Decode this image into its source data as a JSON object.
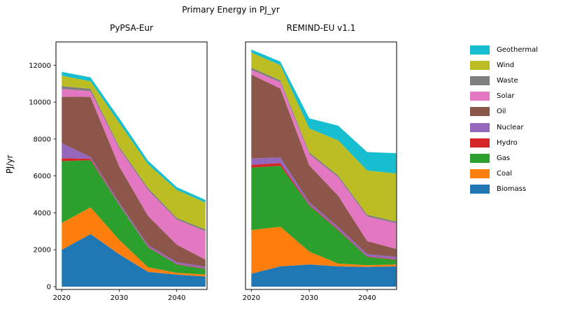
{
  "figure": {
    "title": "Primary Energy in PJ_yr",
    "ylabel": "PJ/yr",
    "background": "#ffffff",
    "axis_color": "#000000"
  },
  "legend": {
    "position": "right-outside",
    "entries_top_to_bottom": [
      "Geothermal",
      "Wind",
      "Waste",
      "Solar",
      "Oil",
      "Nuclear",
      "Hydro",
      "Gas",
      "Coal",
      "Biomass"
    ]
  },
  "series_colors": {
    "Biomass": "#1f77b4",
    "Coal": "#ff7f0e",
    "Gas": "#2ca02c",
    "Hydro": "#d62728",
    "Nuclear": "#9467bd",
    "Oil": "#8c564b",
    "Solar": "#e377c2",
    "Waste": "#7f7f7f",
    "Wind": "#bcbd22",
    "Geothermal": "#17becf"
  },
  "chart_data": [
    {
      "type": "area",
      "stacked": true,
      "title": "PyPSA-Eur",
      "x": [
        2020,
        2025,
        2030,
        2035,
        2040,
        2045
      ],
      "xticks": [
        2020,
        2030,
        2040
      ],
      "yticks": [
        0,
        2000,
        4000,
        6000,
        8000,
        10000,
        12000
      ],
      "ylim": [
        0,
        13250
      ],
      "xlabel": "",
      "ylabel": "PJ/yr",
      "grid": false,
      "series": [
        {
          "name": "Biomass",
          "values": [
            2000,
            2850,
            1750,
            800,
            650,
            550
          ]
        },
        {
          "name": "Coal",
          "values": [
            1450,
            1450,
            780,
            250,
            100,
            100
          ]
        },
        {
          "name": "Gas",
          "values": [
            3350,
            2550,
            1890,
            1075,
            450,
            300
          ]
        },
        {
          "name": "Hydro",
          "values": [
            165,
            80,
            30,
            30,
            25,
            30
          ]
        },
        {
          "name": "Nuclear",
          "values": [
            810,
            100,
            100,
            100,
            100,
            100
          ]
        },
        {
          "name": "Oil",
          "values": [
            2525,
            3250,
            1960,
            1580,
            950,
            380
          ]
        },
        {
          "name": "Solar",
          "values": [
            415,
            310,
            970,
            1410,
            1360,
            1540
          ]
        },
        {
          "name": "Waste",
          "values": [
            150,
            135,
            100,
            100,
            90,
            100
          ]
        },
        {
          "name": "Wind",
          "values": [
            570,
            405,
            1290,
            1290,
            1515,
            1450
          ]
        },
        {
          "name": "Geothermal",
          "values": [
            210,
            215,
            250,
            190,
            150,
            150
          ]
        }
      ]
    },
    {
      "type": "area",
      "stacked": true,
      "title": "REMIND-EU v1.1",
      "x": [
        2020,
        2025,
        2030,
        2035,
        2040,
        2045
      ],
      "xticks": [
        2020,
        2030,
        2040
      ],
      "yticks": [
        0,
        2000,
        4000,
        6000,
        8000,
        10000,
        12000
      ],
      "ylim": [
        0,
        13250
      ],
      "xlabel": "",
      "ylabel": "",
      "grid": false,
      "series": [
        {
          "name": "Biomass",
          "values": [
            700,
            1100,
            1200,
            1100,
            1070,
            1100
          ]
        },
        {
          "name": "Coal",
          "values": [
            2365,
            2150,
            700,
            150,
            90,
            100
          ]
        },
        {
          "name": "Gas",
          "values": [
            3385,
            3300,
            2500,
            1800,
            450,
            250
          ]
        },
        {
          "name": "Hydro",
          "values": [
            150,
            150,
            50,
            50,
            30,
            30
          ]
        },
        {
          "name": "Nuclear",
          "values": [
            350,
            300,
            125,
            125,
            125,
            125
          ]
        },
        {
          "name": "Oil",
          "values": [
            4545,
            3740,
            2000,
            1700,
            700,
            440
          ]
        },
        {
          "name": "Solar",
          "values": [
            250,
            340,
            600,
            1000,
            1330,
            1390
          ]
        },
        {
          "name": "Waste",
          "values": [
            125,
            100,
            100,
            100,
            100,
            100
          ]
        },
        {
          "name": "Wind",
          "values": [
            820,
            820,
            1300,
            1900,
            2400,
            2600
          ]
        },
        {
          "name": "Geothermal",
          "values": [
            160,
            200,
            550,
            800,
            1000,
            1100
          ]
        }
      ]
    }
  ]
}
